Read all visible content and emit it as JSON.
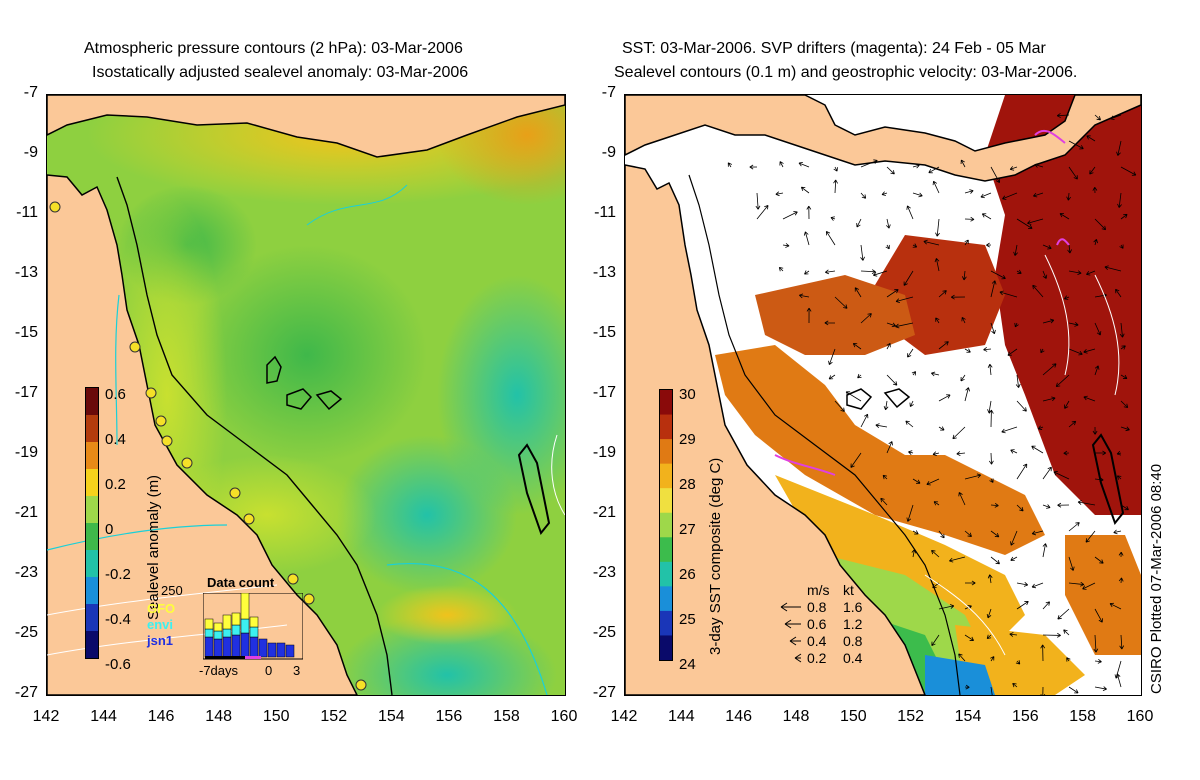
{
  "left_panel": {
    "title_line1": "Atmospheric pressure contours (2 hPa): 03-Mar-2006",
    "title_line2": "Isostatically adjusted sealevel anomaly: 03-Mar-2006",
    "colorbar_label": "Sealevel anomaly (m)",
    "colorbar_ticks": [
      "0.6",
      "0.4",
      "0.2",
      "0",
      "-0.2",
      "-0.4",
      "-0.6"
    ],
    "colorbar_colors": [
      "#6a0a0a",
      "#b33c0d",
      "#e88a17",
      "#f5d21c",
      "#9ed84a",
      "#3fb84a",
      "#22c2a8",
      "#1a8fd9",
      "#1a36b8",
      "#0a0a6a"
    ],
    "inset": {
      "title": "Data count",
      "ymax_label": "250",
      "legend": [
        {
          "name": "GFO",
          "color": "#ffff3c"
        },
        {
          "name": "envi",
          "color": "#3cf0f0"
        },
        {
          "name": "jsn1",
          "color": "#2030e0"
        }
      ],
      "x_labels": [
        "-7days",
        "0",
        "3"
      ]
    },
    "land_color": "#fbc898",
    "sea_color": "#7ccc3c"
  },
  "right_panel": {
    "title_line1": "SST: 03-Mar-2006. SVP drifters (magenta): 24 Feb - 05 Mar",
    "title_line2": "Sealevel contours (0.1 m) and geostrophic velocity: 03-Mar-2006.",
    "colorbar_label": "3-day SST composite (deg C)",
    "colorbar_ticks": [
      "30",
      "29",
      "28",
      "27",
      "26",
      "25",
      "24"
    ],
    "colorbar_colors": [
      "#8a0a0a",
      "#b8300e",
      "#e07a14",
      "#f2b21c",
      "#f0e040",
      "#9ed84a",
      "#3cbc4c",
      "#22c2a8",
      "#1a8fd9",
      "#1a36b8",
      "#0a0a6a"
    ],
    "velocity_legend": {
      "header_ms": "m/s",
      "header_kt": "kt",
      "rows": [
        {
          "ms": "0.8",
          "kt": "1.6"
        },
        {
          "ms": "0.6",
          "kt": "1.2"
        },
        {
          "ms": "0.4",
          "kt": "0.8"
        },
        {
          "ms": "0.2",
          "kt": "0.4"
        }
      ]
    },
    "credit": "CSIRO Plotted 07-Mar-2006 08:40",
    "land_color": "#fbc898"
  },
  "axes": {
    "y_labels": [
      "-7",
      "-9",
      "-11",
      "-13",
      "-15",
      "-17",
      "-19",
      "-21",
      "-23",
      "-25",
      "-27"
    ],
    "x_labels": [
      "142",
      "144",
      "146",
      "148",
      "150",
      "152",
      "154",
      "156",
      "158",
      "160"
    ],
    "lat_range": [
      -27,
      -7
    ],
    "lon_range": [
      142,
      160
    ]
  }
}
